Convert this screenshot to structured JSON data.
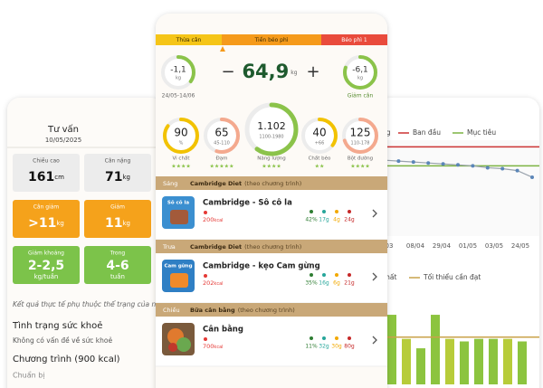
{
  "left_screen": {
    "title": "Tư vấn",
    "date": "10/05/2025",
    "cards": [
      {
        "label": "Chiều cao",
        "value": "161",
        "unit": "cm",
        "style": "gray"
      },
      {
        "label": "Cân nặng",
        "value": "71",
        "unit": "kg",
        "style": "gray"
      },
      {
        "label": "Cân giảm",
        "value": ">11",
        "unit": "kg",
        "style": "orange"
      },
      {
        "label": "Giảm",
        "value": "11",
        "unit": "kg",
        "style": "orange"
      },
      {
        "label": "Giảm khoảng",
        "value": "2-2,5",
        "unit": "kg/tuần",
        "style": "green"
      },
      {
        "label": "Trong",
        "value": "4-6",
        "unit": "tuần",
        "style": "green"
      }
    ],
    "note": "Kết quả thực tế phụ thuộc thể trạng của n",
    "health_title": "Tình trạng sức khoẻ",
    "health_text": "Không có vấn đề về sức khoẻ",
    "program_title": "Chương trình (900 kcal)",
    "prep": "Chuẩn bị"
  },
  "center_screen": {
    "bmi_bands": [
      {
        "label": "Thừa cân",
        "color": "#f5c518"
      },
      {
        "label": "Tiền béo phì",
        "color": "#f59a1b"
      },
      {
        "label": "Béo phì 1",
        "color": "#e94b3c"
      }
    ],
    "left_ring": {
      "value": "-1,1",
      "unit": "kg",
      "caption": "24/05-14/06"
    },
    "weight": {
      "minus": "−",
      "value": "64,9",
      "unit": "kg",
      "plus": "+"
    },
    "right_ring": {
      "value": "-6,1",
      "unit": "kg",
      "caption": "Giảm cân"
    },
    "nutrients": [
      {
        "value": "90",
        "sub": "%",
        "label": "Vi chất",
        "stars": "★★★★",
        "color": "#f2c200"
      },
      {
        "value": "65",
        "sub": "45-110",
        "label": "Đạm",
        "stars": "★★★★★",
        "color": "#f4a98e"
      },
      {
        "value": "1.102",
        "sub": "1100-1980",
        "label": "Năng lượng",
        "stars": "★★★★",
        "color": "#8bc34a"
      },
      {
        "value": "40",
        "sub": "+66",
        "label": "Chất béo",
        "stars": "★★",
        "color": "#f2c200"
      },
      {
        "value": "125",
        "sub": "110-178",
        "label": "Bột đường",
        "stars": "★★★★",
        "color": "#f4a98e"
      }
    ],
    "meals": [
      {
        "time": "Sáng",
        "plan": "Cambridge Diet",
        "note": "(theo chương trình)",
        "thumb": "Sô cô la",
        "name": "Cambridge - Sô cô la",
        "kcal": "200",
        "kcal_unit": "kcal",
        "macros": [
          "42%",
          "17g",
          "4g",
          "24g"
        ]
      },
      {
        "time": "Trưa",
        "plan": "Cambridge Diet",
        "note": "(theo chương trình)",
        "thumb": "Cam gừng",
        "name": "Cambridge - kẹo Cam gừng",
        "kcal": "202",
        "kcal_unit": "kcal",
        "macros": [
          "35%",
          "16g",
          "6g",
          "21g"
        ]
      },
      {
        "time": "Chiều",
        "plan": "Bữa cân bằng",
        "note": "(theo chương trình)",
        "name": "Cân bằng",
        "kcal": "700",
        "kcal_unit": "kcal",
        "macros": [
          "11%",
          "32g",
          "30g",
          "80g"
        ]
      }
    ]
  },
  "right_screen": {
    "line_chart": {
      "type": "line",
      "legend_fragment": "ng",
      "ylim": [
        62,
        72
      ],
      "reference_lines": [
        {
          "name": "Ban đầu",
          "color": "#cc3333",
          "value": 71.3
        },
        {
          "name": "Mục tiêu",
          "color": "#7cb342",
          "value": 69.3
        }
      ],
      "series": {
        "color": "#5b86b8",
        "values": [
          69.9,
          69.8,
          69.7,
          69.6,
          69.5,
          69.4,
          69.3,
          69.1,
          69.0,
          68.8,
          68.1
        ]
      },
      "x_labels": [
        "03",
        "08/04",
        "29/04",
        "01/05",
        "03/05",
        "24/05"
      ]
    },
    "bar_chart": {
      "type": "bar",
      "legend_fragment": "chất",
      "ylim": [
        0,
        100
      ],
      "reference": {
        "name": "Tối thiểu cần đạt",
        "color": "#c9a24a",
        "value": 55
      },
      "values": [
        81,
        53,
        42,
        81,
        53,
        50,
        53,
        53,
        53,
        50
      ],
      "colors": [
        "#8cc43f",
        "#b7cc3a",
        "#8cc43f",
        "#8cc43f",
        "#b7cc3a",
        "#8cc43f",
        "#8cc43f",
        "#8cc43f",
        "#b7cc3a",
        "#8cc43f"
      ]
    }
  }
}
